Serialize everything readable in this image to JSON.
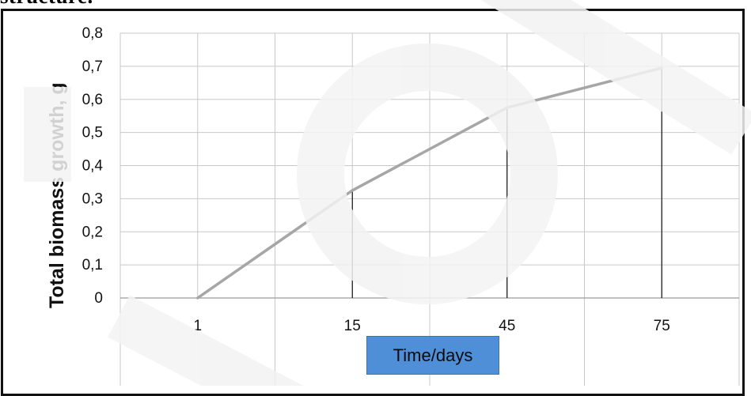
{
  "page": {
    "top_fragment": "structure."
  },
  "chart_data": {
    "type": "line",
    "title": "",
    "xlabel": "Time/days",
    "ylabel": "Total biomass growth, g",
    "categories": [
      "1",
      "15",
      "45",
      "75"
    ],
    "series": [
      {
        "values": [
          0.0,
          0.325,
          0.575,
          0.695
        ],
        "color": "#a6a6a6"
      }
    ],
    "ylim": [
      0,
      0.8
    ],
    "yticks": [
      0,
      0.1,
      0.2,
      0.3,
      0.4,
      0.5,
      0.6,
      0.7,
      0.8
    ],
    "ytick_labels": [
      "0",
      "0,1",
      "0,2",
      "0,3",
      "0,4",
      "0,5",
      "0,6",
      "0,7",
      "0,8"
    ],
    "grid": true,
    "drop_lines": true,
    "legend": "none"
  },
  "colors": {
    "line": "#a6a6a6",
    "grid": "#c8c8c8",
    "axis_label_box": "#4e8fd8"
  }
}
